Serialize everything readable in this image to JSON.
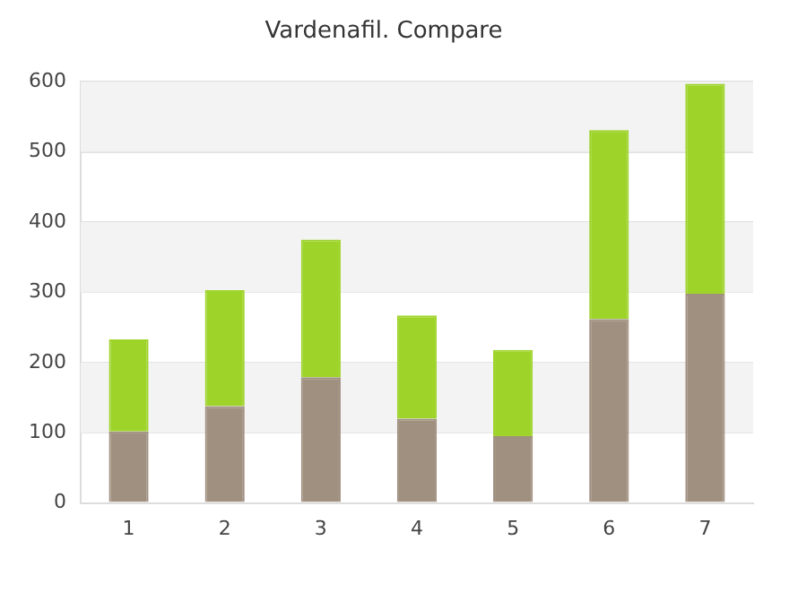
{
  "chart_data": {
    "type": "bar",
    "title": "Vardenafil. Compare",
    "stacked": true,
    "categories": [
      "1",
      "2",
      "3",
      "4",
      "5",
      "6",
      "7"
    ],
    "series": [
      {
        "color": "#a09080",
        "values": [
          102,
          138,
          179,
          120,
          95,
          262,
          298
        ]
      },
      {
        "color": "#9ed42a",
        "values": [
          131,
          165,
          196,
          147,
          123,
          269,
          299
        ]
      }
    ],
    "ylim": [
      0,
      600
    ],
    "yticks": [
      0,
      100,
      200,
      300,
      400,
      500,
      600
    ],
    "grid": "y",
    "legend": false,
    "bands": [
      {
        "axis": "y",
        "from": 100,
        "to": 200,
        "color": "#f3f3f3"
      },
      {
        "axis": "y",
        "from": 300,
        "to": 400,
        "color": "#f3f3f3"
      },
      {
        "axis": "y",
        "from": 500,
        "to": 600,
        "color": "#f3f3f3"
      }
    ]
  }
}
